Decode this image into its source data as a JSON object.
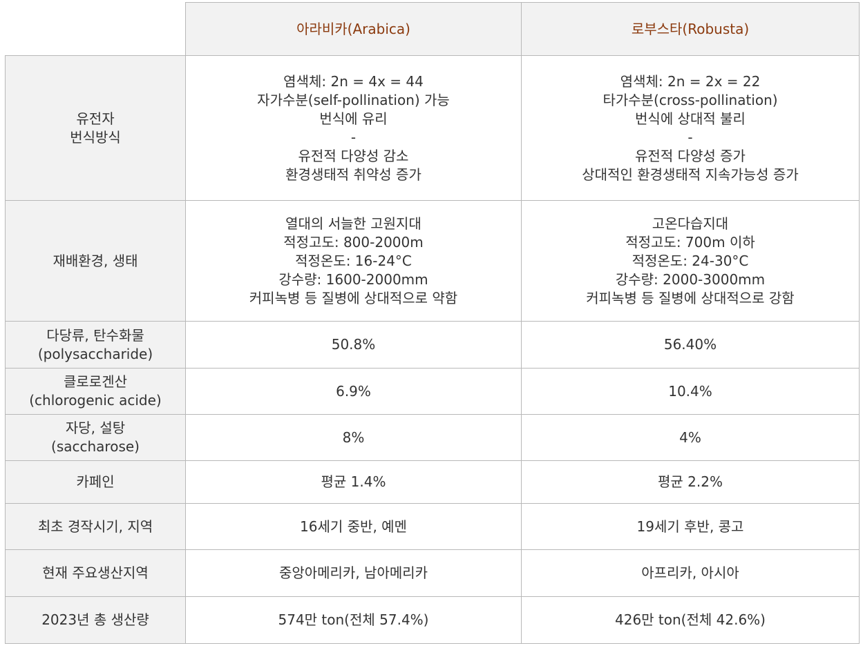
{
  "columns": [
    "아라비카(Arabica)",
    "로부스타(Robusta)"
  ],
  "rows": [
    {
      "header": [
        "유전자",
        "번식방식"
      ],
      "arabica": [
        "염색체: 2n = 4x = 44",
        "자가수분(self-pollination) 가능",
        "번식에 유리",
        "-",
        "유전적 다양성 감소",
        "환경생태적 취약성 증가"
      ],
      "robusta": [
        "염색체: 2n = 2x = 22",
        "타가수분(cross-pollination)",
        "번식에 상대적 불리",
        "-",
        "유전적 다양성 증가",
        "상대적인 환경생태적 지속가능성 증가"
      ]
    },
    {
      "header": [
        "재배환경, 생태"
      ],
      "arabica": [
        "열대의 서늘한 고원지대",
        "적정고도: 800-2000m",
        "적정온도: 16-24°C",
        "강수량: 1600-2000mm",
        "커피녹병 등 질병에 상대적으로 약함"
      ],
      "robusta": [
        "고온다습지대",
        "적정고도: 700m 이하",
        "적정온도: 24-30°C",
        "강수량: 2000-3000mm",
        "커피녹병 등 질병에 상대적으로 강함"
      ]
    },
    {
      "header": [
        "다당류, 탄수화물",
        "(polysaccharide)"
      ],
      "arabica": [
        "50.8%"
      ],
      "robusta": [
        "56.40%"
      ]
    },
    {
      "header": [
        "클로로겐산",
        "(chlorogenic acide)"
      ],
      "arabica": [
        "6.9%"
      ],
      "robusta": [
        "10.4%"
      ]
    },
    {
      "header": [
        "자당, 설탕",
        "(saccharose)"
      ],
      "arabica": [
        "8%"
      ],
      "robusta": [
        "4%"
      ]
    },
    {
      "header": [
        "카페인"
      ],
      "arabica": [
        "평균 1.4%"
      ],
      "robusta": [
        "평균 2.2%"
      ]
    },
    {
      "header": [
        "최초 경작시기, 지역"
      ],
      "arabica": [
        "16세기 중반, 예멘"
      ],
      "robusta": [
        "19세기 후반, 콩고"
      ]
    },
    {
      "header": [
        "현재 주요생산지역"
      ],
      "arabica": [
        "중앙아메리카, 남아메리카"
      ],
      "robusta": [
        "아프리카, 아시아"
      ]
    },
    {
      "header": [
        "2023년 총 생산량"
      ],
      "arabica": [
        "574만 ton(전체 57.4%)"
      ],
      "robusta": [
        "426만 ton(전체 42.6%)"
      ]
    }
  ],
  "colors": {
    "header_text": "#8b3a0e",
    "header_bg": "#f2f2f2",
    "border": "#b8b8b8",
    "body_text": "#333333"
  }
}
